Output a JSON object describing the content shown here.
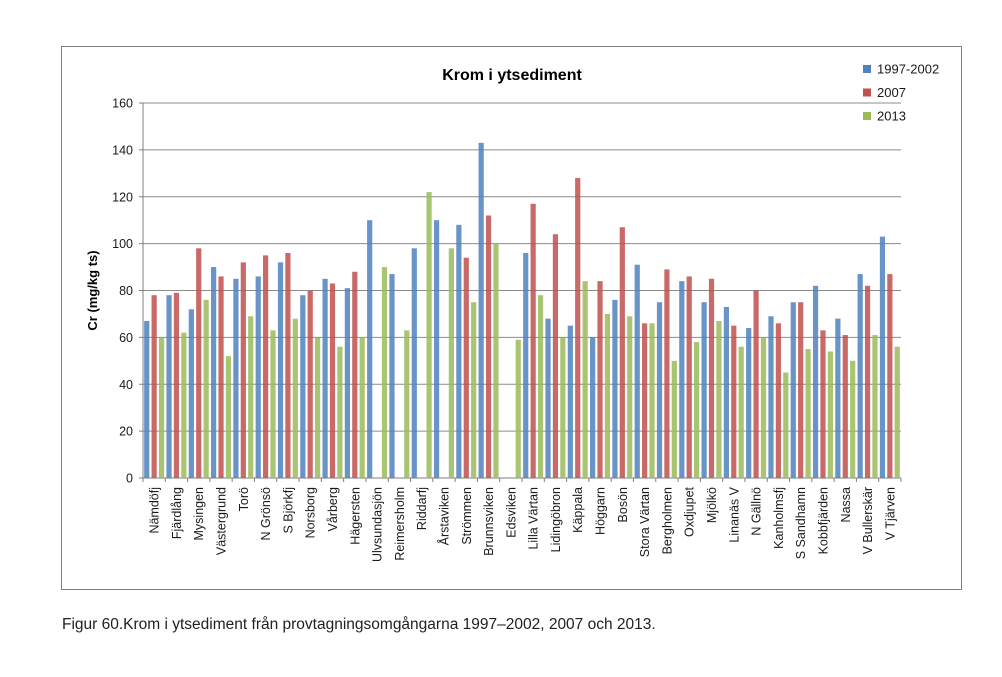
{
  "caption": "Figur 60.Krom i ytsediment från provtagningsomgångarna 1997–2002, 2007 och 2013.",
  "chart_data": {
    "type": "bar",
    "title": "Krom i ytsediment",
    "xlabel": "",
    "ylabel": "Cr (mg/kg ts)",
    "ylim": [
      0,
      160
    ],
    "yticks": [
      0,
      20,
      40,
      60,
      80,
      100,
      120,
      140,
      160
    ],
    "grid": true,
    "legend_position": "top-right",
    "categories": [
      "Nämdöfj",
      "Fjärdlång",
      "Mysingen",
      "Västergrund",
      "Torö",
      "N Grönsö",
      "S Björkfj",
      "Norsborg",
      "Vårberg",
      "Hägersten",
      "Ulvsundasjön",
      "Reimersholm",
      "Riddarfj",
      "Årstaviken",
      "Strömmen",
      "Brunnsviken",
      "Edsviken",
      "Lilla Värtan",
      "Lidingöbron",
      "Käppala",
      "Höggarn",
      "Bosön",
      "Stora Värtan",
      "Bergholmen",
      "Oxdjupet",
      "Mjölkö",
      "Linanäs V",
      "N Gällnö",
      "Kanholmsfj",
      "S Sandhamn",
      "Kobbfjärden",
      "Nassa",
      "V Bullerskär",
      "V Tjärven"
    ],
    "series": [
      {
        "name": "1997-2002",
        "color": "#4f81bd",
        "values": [
          67,
          78,
          72,
          90,
          85,
          86,
          92,
          78,
          85,
          81,
          110,
          87,
          98,
          110,
          108,
          143,
          0,
          96,
          68,
          65,
          60,
          76,
          91,
          75,
          84,
          75,
          73,
          64,
          69,
          75,
          82,
          68,
          87,
          103
        ]
      },
      {
        "name": "2007",
        "color": "#c0504d",
        "values": [
          78,
          79,
          98,
          86,
          92,
          95,
          96,
          80,
          83,
          88,
          0,
          0,
          0,
          0,
          94,
          112,
          0,
          117,
          104,
          128,
          84,
          107,
          66,
          89,
          86,
          85,
          65,
          80,
          66,
          75,
          63,
          61,
          82,
          87
        ]
      },
      {
        "name": "2013",
        "color": "#9bbb59",
        "values": [
          60,
          62,
          76,
          52,
          69,
          63,
          68,
          60,
          56,
          60,
          90,
          63,
          122,
          98,
          75,
          100,
          59,
          78,
          60,
          84,
          70,
          69,
          66,
          50,
          58,
          67,
          56,
          60,
          45,
          55,
          54,
          50,
          61,
          56
        ]
      }
    ]
  }
}
